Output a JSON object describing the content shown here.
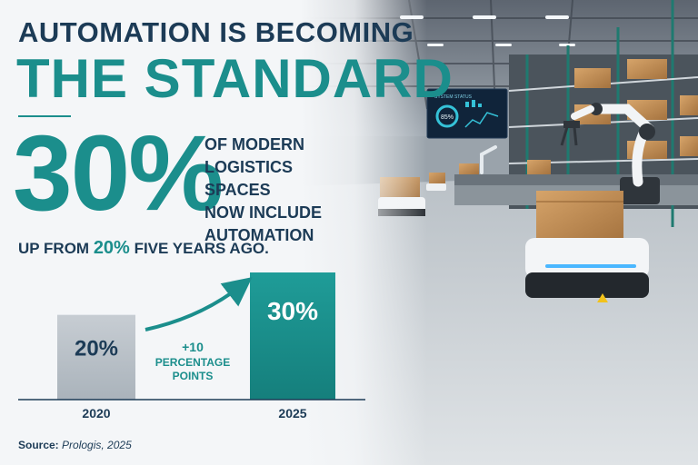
{
  "headline": {
    "line1": "AUTOMATION IS BECOMING",
    "line2": "THE STANDARD"
  },
  "stat": {
    "value": "30%",
    "caption_lines": [
      "OF MODERN",
      "LOGISTICS SPACES",
      "NOW INCLUDE",
      "AUTOMATION"
    ]
  },
  "subline": {
    "prefix": "UP FROM ",
    "highlight": "20%",
    "suffix": " FIVE YEARS AGO."
  },
  "change_annotation": {
    "value": "+10",
    "label_lines": [
      "PERCENTAGE",
      "POINTS"
    ]
  },
  "source": {
    "label": "Source:",
    "value": "Prologis, 2025"
  },
  "screen": {
    "title": "SYSTEM STATUS",
    "gauge_value": "85%"
  },
  "colors": {
    "teal": "#1b8e8c",
    "navy": "#1c3b56",
    "grey_bar": "#b6bec6"
  },
  "chart_data": {
    "type": "bar",
    "categories": [
      "2020",
      "2025"
    ],
    "values": [
      20,
      30
    ],
    "value_labels": [
      "20%",
      "30%"
    ],
    "unit": "%",
    "title": "",
    "xlabel": "",
    "ylabel": "",
    "ylim": [
      0,
      30
    ]
  }
}
